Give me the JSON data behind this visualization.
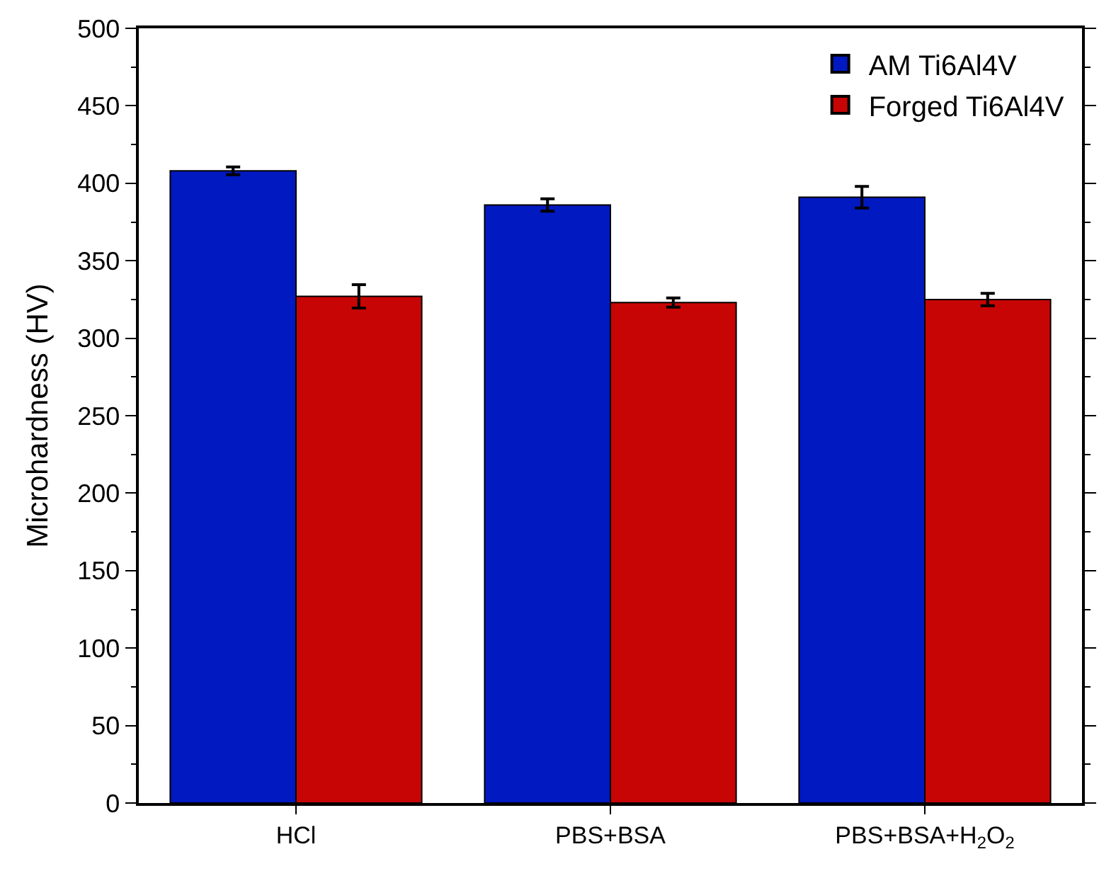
{
  "chart_data": {
    "type": "bar",
    "ylabel": "Microhardness (HV)",
    "categories": [
      "HCl",
      "PBS+BSA",
      "PBS+BSA+H$_{2}$O$_{2}$"
    ],
    "series": [
      {
        "name": "AM Ti6Al4V",
        "color": "#0019c0",
        "values": [
          408,
          386,
          391
        ],
        "errors": [
          2.5,
          4,
          7
        ]
      },
      {
        "name": "Forged Ti6Al4V",
        "color": "#c80505",
        "values": [
          327,
          323,
          325
        ],
        "errors": [
          7.5,
          3,
          4
        ]
      }
    ],
    "ylim": [
      0,
      500
    ],
    "yticks": [
      0,
      50,
      100,
      150,
      200,
      250,
      300,
      350,
      400,
      450,
      500
    ],
    "legend": "top right"
  }
}
